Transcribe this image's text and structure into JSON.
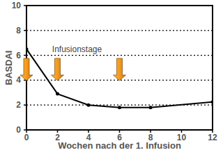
{
  "chart_data": {
    "type": "line",
    "x_label": "Wochen nach der 1. Infusion",
    "y_label": "BASDAI",
    "x": [
      0,
      2,
      4,
      6,
      8,
      12
    ],
    "values": [
      6.5,
      2.9,
      2.0,
      1.8,
      1.8,
      2.25
    ],
    "color": "#000000",
    "marker": "circle",
    "xlim": [
      0,
      12
    ],
    "xticks": [
      0,
      2,
      4,
      6,
      8,
      10,
      12
    ],
    "ylim": [
      0,
      10
    ],
    "yticks": [
      0,
      2,
      4,
      6,
      8,
      10
    ],
    "grid": true,
    "annotation": "Infusionstage",
    "infusion_weeks": [
      0,
      2,
      6
    ]
  }
}
